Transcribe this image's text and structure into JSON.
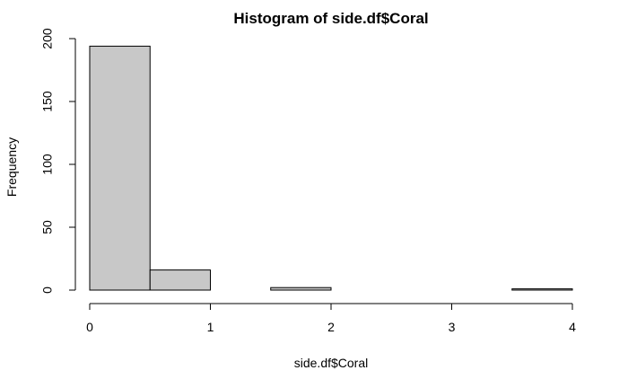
{
  "chart_data": {
    "type": "bar",
    "title": "Histogram of side.df$Coral",
    "xlabel": "side.df$Coral",
    "ylabel": "Frequency",
    "bins": [
      {
        "start": 0.0,
        "end": 0.5,
        "count": 194
      },
      {
        "start": 0.5,
        "end": 1.0,
        "count": 16
      },
      {
        "start": 1.0,
        "end": 1.5,
        "count": 0
      },
      {
        "start": 1.5,
        "end": 2.0,
        "count": 2
      },
      {
        "start": 2.0,
        "end": 2.5,
        "count": 0
      },
      {
        "start": 2.5,
        "end": 3.0,
        "count": 0
      },
      {
        "start": 3.0,
        "end": 3.5,
        "count": 0
      },
      {
        "start": 3.5,
        "end": 4.0,
        "count": 1
      }
    ],
    "xlim": [
      0,
      4
    ],
    "ylim": [
      0,
      200
    ],
    "x_ticks": [
      "0",
      "1",
      "2",
      "3",
      "4"
    ],
    "y_ticks": [
      "0",
      "50",
      "100",
      "150",
      "200"
    ],
    "grid": false,
    "bar_fill": "#c8c8c8",
    "bar_stroke": "#000000"
  }
}
